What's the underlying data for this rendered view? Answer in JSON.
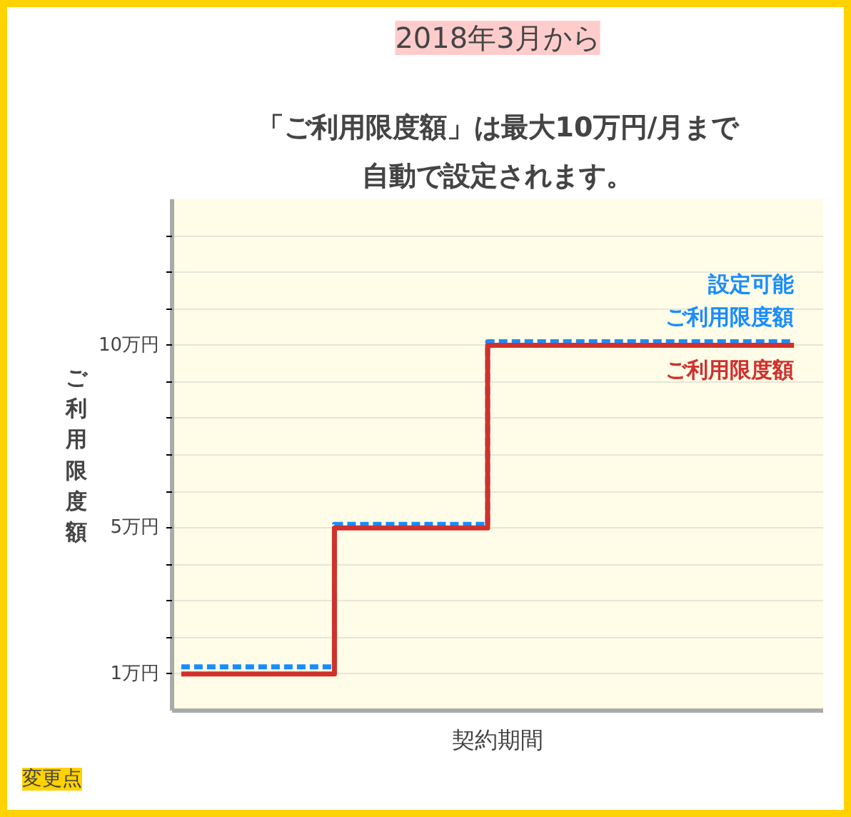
{
  "chart_data": {
    "type": "step",
    "title": "「ご利用限度額」は最大10万円/月まで",
    "subtitle": "自動で設定されます。",
    "xlabel": "契約期間",
    "ylabel": "ご利用限度額",
    "annotations": [
      "2018年3月から",
      "変更点"
    ],
    "categories": [
      null,
      null,
      null,
      null,
      null
    ],
    "series": [
      {
        "name": "設定可能ご利用限度額",
        "color": "#1a8cff",
        "values": [
          1.2,
          5.1,
          10.1,
          10.1,
          10.1
        ],
        "line_style": "dashed"
      },
      {
        "name": "ご利用限度額",
        "color": "#d0312d",
        "values": [
          1,
          5,
          10,
          10,
          10
        ],
        "line_style": "solid"
      }
    ],
    "ylim": [
      0,
      14
    ],
    "yticks": [
      {
        "value": 1,
        "label": "1万円"
      },
      {
        "value": 2,
        "label": null
      },
      {
        "value": 3,
        "label": null
      },
      {
        "value": 4,
        "label": null
      },
      {
        "value": 5,
        "label": "5万円"
      },
      {
        "value": 6,
        "label": null
      },
      {
        "value": 7,
        "label": null
      },
      {
        "value": 8,
        "label": null
      },
      {
        "value": 9,
        "label": null
      },
      {
        "value": 10,
        "label": "10万円"
      },
      {
        "value": 11,
        "label": null
      },
      {
        "value": 12,
        "label": null
      },
      {
        "value": 13,
        "label": null
      }
    ],
    "grid": "y",
    "tick_labels": "y"
  }
}
